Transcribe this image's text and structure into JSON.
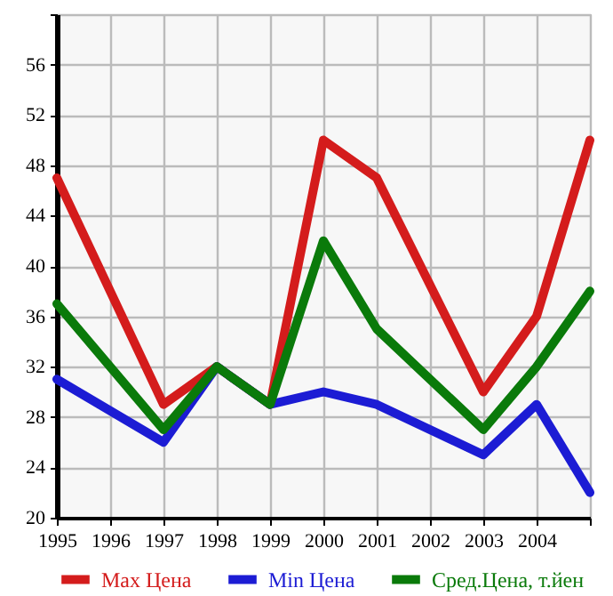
{
  "chart_data": {
    "type": "line",
    "xlim": [
      1995,
      2005
    ],
    "xticks": [
      1995,
      1996,
      1997,
      1998,
      1999,
      2000,
      2001,
      2002,
      2003,
      2004,
      {
        "value": 2005,
        "label": null
      }
    ],
    "ylim": [
      20,
      60
    ],
    "yticks": [
      20,
      24,
      28,
      32,
      36,
      40,
      44,
      48,
      52,
      56,
      {
        "value": 60,
        "label": null
      }
    ],
    "grid": true,
    "legend": "bottom",
    "marker": "none",
    "line_style": "solid",
    "series": [
      {
        "name": "Max Цена",
        "color": "#d41c1c",
        "x": [
          1995,
          1997,
          1998,
          1999,
          2000,
          2001,
          2003,
          2004,
          2005
        ],
        "values": [
          47,
          29,
          32,
          29,
          50,
          47,
          30,
          36,
          50
        ]
      },
      {
        "name": "Min Цена",
        "color": "#1c1cd4",
        "x": [
          1995,
          1997,
          1998,
          1999,
          2000,
          2001,
          2003,
          2004,
          2005
        ],
        "values": [
          31,
          26,
          32,
          29,
          30,
          29,
          25,
          29,
          22
        ]
      },
      {
        "name": "Сред.Цена, т.йен",
        "color": "#0a7a0a",
        "x": [
          1995,
          1997,
          1998,
          1999,
          2000,
          2001,
          2003,
          2004,
          2005
        ],
        "values": [
          37,
          27,
          32,
          29,
          42,
          35,
          27,
          32,
          38
        ]
      }
    ]
  }
}
